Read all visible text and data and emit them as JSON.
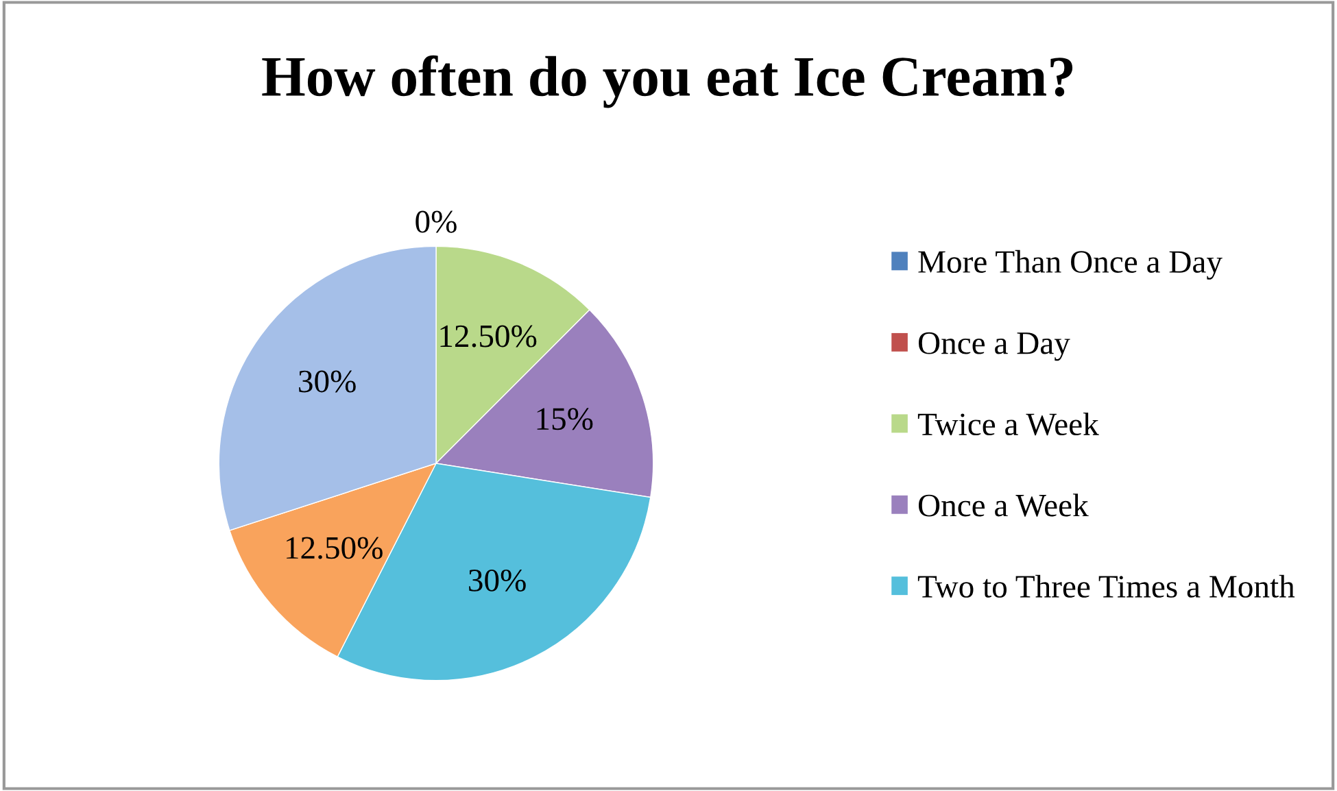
{
  "chart_data": {
    "type": "pie",
    "title": "How often do you eat Ice Cream?",
    "categories": [
      "More Than Once a Day",
      "Once a Day",
      "Twice a Week",
      "Once a Week",
      "Two to Three Times a Month",
      null,
      null
    ],
    "values": [
      0,
      0,
      12.5,
      15,
      30,
      12.5,
      30
    ],
    "colors": [
      "#4f81bd",
      "#c0504d",
      "#b9d98a",
      "#9a80bd",
      "#55bfdc",
      "#f9a35c",
      "#a5bfe8"
    ],
    "value_labels": [
      "0%",
      null,
      "12.50%",
      "15%",
      "30%",
      "12.50%",
      "30%"
    ],
    "legend": "right"
  }
}
